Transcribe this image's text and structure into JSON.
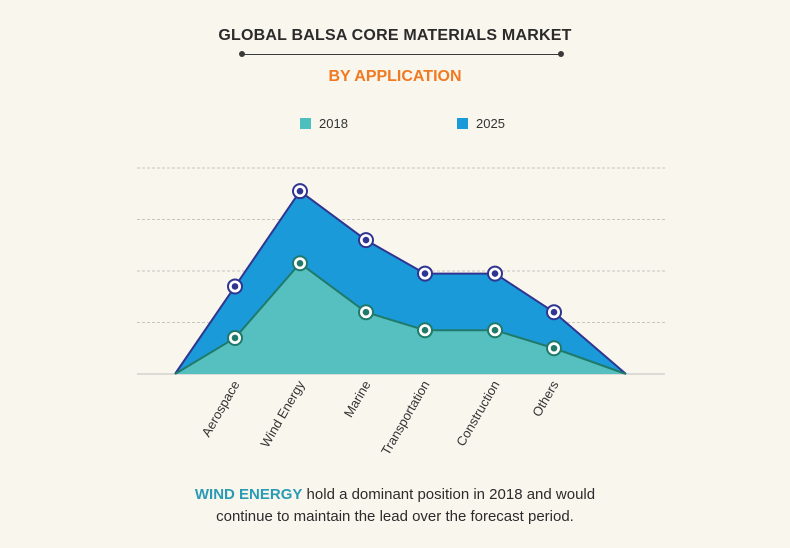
{
  "header": {
    "title": "GLOBAL BALSA CORE MATERIALS MARKET",
    "subtitle": "BY APPLICATION"
  },
  "legend": [
    {
      "label": "2018",
      "color": "#4dbfbf"
    },
    {
      "label": "2025",
      "color": "#1a9ad9"
    }
  ],
  "colors": {
    "series_2018_fill": "#55c0bf",
    "series_2018_line": "#1f7a6a",
    "series_2025_fill": "#1a9ad9",
    "series_2025_line": "#2f3590",
    "title_accent": "#f07a21",
    "highlight": "#2a9bb5"
  },
  "chart_data": {
    "type": "area",
    "title": "GLOBAL BALSA CORE MATERIALS MARKET",
    "subtitle": "BY APPLICATION",
    "categories": [
      "Aerospace",
      "Wind Energy",
      "Marine",
      "Transportation",
      "Construction",
      "Others"
    ],
    "series": [
      {
        "name": "2018",
        "values": [
          1.4,
          4.3,
          2.4,
          1.7,
          1.7,
          1.0
        ]
      },
      {
        "name": "2025",
        "values": [
          3.4,
          7.1,
          5.2,
          3.9,
          3.9,
          2.4
        ]
      }
    ],
    "ylim": [
      0,
      8
    ],
    "xlabel": "",
    "ylabel": "",
    "y_axis_labels_shown": false,
    "grid": "horizontal dashed",
    "legend_position": "top-center",
    "start_value": 0,
    "end_value": 0
  },
  "caption": {
    "highlight": "WIND ENERGY",
    "line1_rest": " hold a dominant position in 2018 and would",
    "line2": "continue to maintain the lead over the forecast period."
  }
}
